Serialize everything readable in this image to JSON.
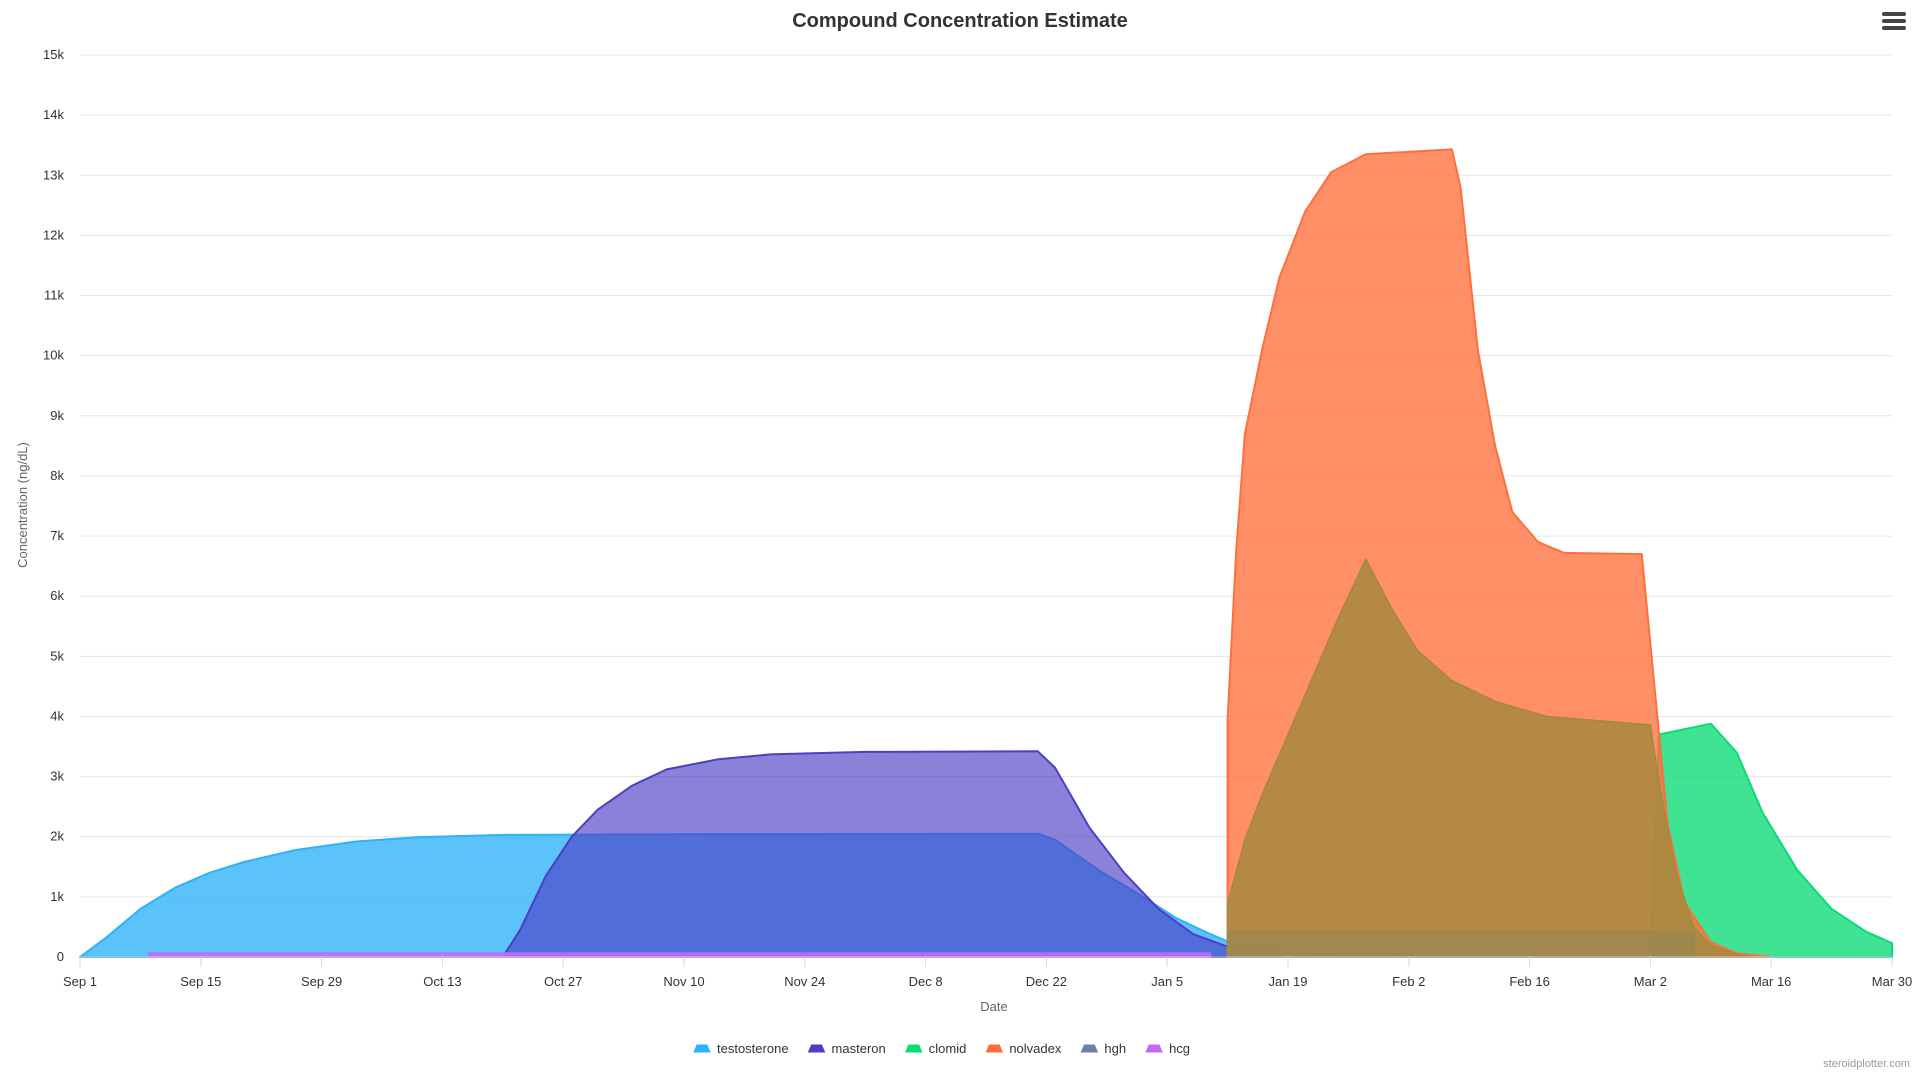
{
  "menu_icon": "hamburger-menu-icon",
  "credits": "steroidplotter.com",
  "chart_data": {
    "type": "area",
    "title": "Compound Concentration Estimate",
    "xlabel": "Date",
    "ylabel": "Concentration (ng/dL)",
    "x_range": [
      "2000-09-01",
      "2001-03-30"
    ],
    "xticks": [
      {
        "date": "2000-09-01",
        "label": "Sep 1"
      },
      {
        "date": "2000-09-15",
        "label": "Sep 15"
      },
      {
        "date": "2000-09-29",
        "label": "Sep 29"
      },
      {
        "date": "2000-10-13",
        "label": "Oct 13"
      },
      {
        "date": "2000-10-27",
        "label": "Oct 27"
      },
      {
        "date": "2000-11-10",
        "label": "Nov 10"
      },
      {
        "date": "2000-11-24",
        "label": "Nov 24"
      },
      {
        "date": "2000-12-08",
        "label": "Dec 8"
      },
      {
        "date": "2000-12-22",
        "label": "Dec 22"
      },
      {
        "date": "2001-01-05",
        "label": "Jan 5"
      },
      {
        "date": "2001-01-19",
        "label": "Jan 19"
      },
      {
        "date": "2001-02-02",
        "label": "Feb 2"
      },
      {
        "date": "2001-02-16",
        "label": "Feb 16"
      },
      {
        "date": "2001-03-02",
        "label": "Mar 2"
      },
      {
        "date": "2001-03-16",
        "label": "Mar 16"
      },
      {
        "date": "2001-03-30",
        "label": "Mar 30"
      }
    ],
    "ylim": [
      0,
      15000
    ],
    "yticks": [
      {
        "value": 0,
        "label": "0"
      },
      {
        "value": 1000,
        "label": "1k"
      },
      {
        "value": 2000,
        "label": "2k"
      },
      {
        "value": 3000,
        "label": "3k"
      },
      {
        "value": 4000,
        "label": "4k"
      },
      {
        "value": 5000,
        "label": "5k"
      },
      {
        "value": 6000,
        "label": "6k"
      },
      {
        "value": 7000,
        "label": "7k"
      },
      {
        "value": 8000,
        "label": "8k"
      },
      {
        "value": 9000,
        "label": "9k"
      },
      {
        "value": 10000,
        "label": "10k"
      },
      {
        "value": 11000,
        "label": "11k"
      },
      {
        "value": 12000,
        "label": "12k"
      },
      {
        "value": 13000,
        "label": "13k"
      },
      {
        "value": 14000,
        "label": "14k"
      },
      {
        "value": 15000,
        "label": "15k"
      }
    ],
    "grid": true,
    "legend_position": "bottom-center",
    "series": [
      {
        "name": "testosterone",
        "color": "#2eb2f9",
        "fill_opacity": 0.78,
        "points": [
          [
            "2000-09-01",
            0
          ],
          [
            "2000-09-04",
            320
          ],
          [
            "2000-09-08",
            800
          ],
          [
            "2000-09-12",
            1150
          ],
          [
            "2000-09-16",
            1400
          ],
          [
            "2000-09-20",
            1580
          ],
          [
            "2000-09-26",
            1780
          ],
          [
            "2000-10-03",
            1920
          ],
          [
            "2000-10-10",
            1990
          ],
          [
            "2000-10-20",
            2030
          ],
          [
            "2000-11-10",
            2040
          ],
          [
            "2000-12-21",
            2050
          ],
          [
            "2000-12-23",
            1950
          ],
          [
            "2000-12-28",
            1450
          ],
          [
            "2001-01-02",
            1020
          ],
          [
            "2001-01-06",
            650
          ],
          [
            "2001-01-10",
            380
          ],
          [
            "2001-01-12",
            260
          ],
          [
            "2001-01-20",
            120
          ],
          [
            "2001-02-05",
            30
          ],
          [
            "2001-02-20",
            0
          ]
        ]
      },
      {
        "name": "masteron",
        "color": "#4b3fc5",
        "fill_opacity": 0.65,
        "points": [
          [
            "2000-10-20",
            0
          ],
          [
            "2000-10-22",
            450
          ],
          [
            "2000-10-25",
            1350
          ],
          [
            "2000-10-28",
            2000
          ],
          [
            "2000-10-31",
            2450
          ],
          [
            "2000-11-04",
            2850
          ],
          [
            "2000-11-08",
            3120
          ],
          [
            "2000-11-14",
            3290
          ],
          [
            "2000-11-20",
            3370
          ],
          [
            "2000-12-01",
            3410
          ],
          [
            "2000-12-21",
            3420
          ],
          [
            "2000-12-23",
            3150
          ],
          [
            "2000-12-27",
            2150
          ],
          [
            "2000-12-31",
            1400
          ],
          [
            "2001-01-04",
            800
          ],
          [
            "2001-01-08",
            380
          ],
          [
            "2001-01-13",
            120
          ],
          [
            "2001-01-25",
            20
          ],
          [
            "2001-02-05",
            0
          ]
        ]
      },
      {
        "name": "clomid",
        "color": "#0adb74",
        "fill_opacity": 0.78,
        "points": [
          [
            "2001-03-02",
            0
          ],
          [
            "2001-03-03",
            3700
          ],
          [
            "2001-03-09",
            3880
          ],
          [
            "2001-03-12",
            3400
          ],
          [
            "2001-03-15",
            2400
          ],
          [
            "2001-03-19",
            1450
          ],
          [
            "2001-03-23",
            800
          ],
          [
            "2001-03-27",
            420
          ],
          [
            "2001-03-30",
            230
          ]
        ]
      },
      {
        "name": "nolvadex",
        "color": "#ff6f3c",
        "fill_opacity": 0.78,
        "points": [
          [
            "2001-01-12",
            0
          ],
          [
            "2001-01-12",
            3950
          ],
          [
            "2001-01-13",
            6750
          ],
          [
            "2001-01-14",
            8700
          ],
          [
            "2001-01-16",
            10100
          ],
          [
            "2001-01-18",
            11300
          ],
          [
            "2001-01-21",
            12400
          ],
          [
            "2001-01-24",
            13050
          ],
          [
            "2001-01-28",
            13350
          ],
          [
            "2001-02-07",
            13430
          ],
          [
            "2001-02-08",
            12800
          ],
          [
            "2001-02-10",
            10100
          ],
          [
            "2001-02-12",
            8500
          ],
          [
            "2001-02-14",
            7400
          ],
          [
            "2001-02-17",
            6900
          ],
          [
            "2001-02-20",
            6720
          ],
          [
            "2001-03-01",
            6700
          ],
          [
            "2001-03-02",
            5200
          ],
          [
            "2001-03-04",
            2200
          ],
          [
            "2001-03-06",
            900
          ],
          [
            "2001-03-09",
            250
          ],
          [
            "2001-03-12",
            60
          ],
          [
            "2001-03-16",
            0
          ]
        ]
      },
      {
        "name": "hgh",
        "color": "#6c81a8",
        "fill_opacity": 0.78,
        "points": [
          [
            "2001-01-12",
            0
          ],
          [
            "2001-01-12",
            420
          ],
          [
            "2001-03-07",
            420
          ],
          [
            "2001-03-07",
            0
          ]
        ]
      },
      {
        "name": "hcg",
        "color": "#c46af0",
        "fill_opacity": 0.78,
        "points": [
          [
            "2000-09-09",
            0
          ],
          [
            "2000-09-09",
            60
          ],
          [
            "2001-01-10",
            60
          ],
          [
            "2001-01-10",
            0
          ]
        ]
      }
    ],
    "overlay_series": [
      {
        "color": "#a6883e",
        "fill_opacity": 0.85,
        "points": [
          [
            "2001-01-12",
            0
          ],
          [
            "2001-01-12",
            900
          ],
          [
            "2001-01-14",
            1950
          ],
          [
            "2001-01-16",
            2700
          ],
          [
            "2001-01-19",
            3700
          ],
          [
            "2001-01-22",
            4700
          ],
          [
            "2001-01-25",
            5700
          ],
          [
            "2001-01-27",
            6300
          ],
          [
            "2001-01-28",
            6620
          ],
          [
            "2001-01-31",
            5800
          ],
          [
            "2001-02-03",
            5100
          ],
          [
            "2001-02-07",
            4600
          ],
          [
            "2001-02-12",
            4250
          ],
          [
            "2001-02-18",
            4000
          ],
          [
            "2001-03-02",
            3860
          ],
          [
            "2001-03-03",
            2900
          ],
          [
            "2001-03-05",
            1400
          ],
          [
            "2001-03-07",
            500
          ],
          [
            "2001-03-09",
            200
          ],
          [
            "2001-03-12",
            40
          ],
          [
            "2001-03-14",
            0
          ]
        ]
      }
    ]
  }
}
